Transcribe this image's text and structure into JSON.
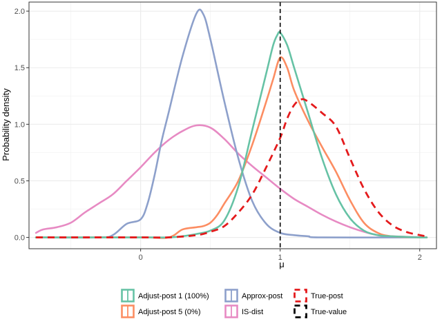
{
  "chart_data": {
    "type": "line",
    "title": "",
    "xlabel": "μ",
    "ylabel": "Probability density",
    "xlim": [
      -0.8,
      2.12
    ],
    "ylim": [
      -0.1,
      2.08
    ],
    "x_ticks": [
      0,
      1,
      2
    ],
    "x_tick_labels": [
      "0",
      "1",
      "2"
    ],
    "y_ticks": [
      0.0,
      0.5,
      1.0,
      1.5,
      2.0
    ],
    "y_tick_labels": [
      "0.0",
      "0.5",
      "1.0",
      "1.5",
      "2.0"
    ],
    "grid": true,
    "legend_position": "bottom",
    "series": [
      {
        "name": "Adjust-post 1 (100%)",
        "color": "#66c2a5",
        "dash": "solid",
        "points": [
          [
            -0.75,
            0.0
          ],
          [
            0.0,
            0.0
          ],
          [
            0.1,
            0.0
          ],
          [
            0.2,
            0.0
          ],
          [
            0.3,
            0.01
          ],
          [
            0.4,
            0.03
          ],
          [
            0.5,
            0.06
          ],
          [
            0.6,
            0.15
          ],
          [
            0.7,
            0.45
          ],
          [
            0.8,
            0.95
          ],
          [
            0.9,
            1.45
          ],
          [
            0.95,
            1.7
          ],
          [
            0.98,
            1.79
          ],
          [
            1.0,
            1.81
          ],
          [
            1.05,
            1.7
          ],
          [
            1.1,
            1.5
          ],
          [
            1.2,
            1.1
          ],
          [
            1.3,
            0.7
          ],
          [
            1.4,
            0.38
          ],
          [
            1.5,
            0.17
          ],
          [
            1.6,
            0.06
          ],
          [
            1.7,
            0.02
          ],
          [
            1.8,
            0.01
          ],
          [
            2.0,
            0.0
          ],
          [
            2.05,
            0.0
          ]
        ]
      },
      {
        "name": "Adjust-post 5 (0%)",
        "color": "#fc8d62",
        "dash": "solid",
        "points": [
          [
            -0.75,
            0.0
          ],
          [
            0.0,
            0.0
          ],
          [
            0.2,
            0.0
          ],
          [
            0.3,
            0.07
          ],
          [
            0.4,
            0.09
          ],
          [
            0.45,
            0.1
          ],
          [
            0.5,
            0.13
          ],
          [
            0.55,
            0.2
          ],
          [
            0.6,
            0.3
          ],
          [
            0.7,
            0.5
          ],
          [
            0.8,
            0.82
          ],
          [
            0.9,
            1.2
          ],
          [
            0.95,
            1.4
          ],
          [
            1.0,
            1.59
          ],
          [
            1.05,
            1.5
          ],
          [
            1.1,
            1.3
          ],
          [
            1.2,
            1.03
          ],
          [
            1.3,
            0.8
          ],
          [
            1.4,
            0.58
          ],
          [
            1.5,
            0.33
          ],
          [
            1.6,
            0.13
          ],
          [
            1.7,
            0.04
          ],
          [
            1.8,
            0.01
          ],
          [
            2.0,
            0.0
          ],
          [
            2.05,
            0.0
          ]
        ]
      },
      {
        "name": "Approx-post",
        "color": "#8da0cb",
        "dash": "solid",
        "points": [
          [
            -0.75,
            0.0
          ],
          [
            -0.3,
            0.0
          ],
          [
            -0.2,
            0.02
          ],
          [
            -0.1,
            0.12
          ],
          [
            0.0,
            0.16
          ],
          [
            0.05,
            0.3
          ],
          [
            0.1,
            0.55
          ],
          [
            0.15,
            0.85
          ],
          [
            0.2,
            1.1
          ],
          [
            0.3,
            1.6
          ],
          [
            0.4,
            1.98
          ],
          [
            0.45,
            1.97
          ],
          [
            0.5,
            1.75
          ],
          [
            0.6,
            1.2
          ],
          [
            0.7,
            0.7
          ],
          [
            0.8,
            0.32
          ],
          [
            0.9,
            0.12
          ],
          [
            1.0,
            0.04
          ],
          [
            1.1,
            0.02
          ],
          [
            1.2,
            0.01
          ],
          [
            1.3,
            0.0
          ],
          [
            2.05,
            0.0
          ]
        ]
      },
      {
        "name": "IS-dist",
        "color": "#e78ac3",
        "dash": "solid",
        "points": [
          [
            -0.75,
            0.04
          ],
          [
            -0.7,
            0.07
          ],
          [
            -0.6,
            0.09
          ],
          [
            -0.5,
            0.13
          ],
          [
            -0.4,
            0.22
          ],
          [
            -0.3,
            0.3
          ],
          [
            -0.2,
            0.38
          ],
          [
            -0.1,
            0.5
          ],
          [
            0.0,
            0.62
          ],
          [
            0.1,
            0.75
          ],
          [
            0.2,
            0.86
          ],
          [
            0.3,
            0.94
          ],
          [
            0.4,
            0.99
          ],
          [
            0.5,
            0.97
          ],
          [
            0.6,
            0.87
          ],
          [
            0.7,
            0.74
          ],
          [
            0.8,
            0.63
          ],
          [
            0.9,
            0.53
          ],
          [
            1.0,
            0.43
          ],
          [
            1.1,
            0.34
          ],
          [
            1.2,
            0.27
          ],
          [
            1.3,
            0.2
          ],
          [
            1.4,
            0.14
          ],
          [
            1.5,
            0.09
          ],
          [
            1.6,
            0.05
          ],
          [
            1.7,
            0.02
          ],
          [
            1.8,
            0.01
          ],
          [
            2.05,
            0.0
          ]
        ]
      },
      {
        "name": "True-post",
        "color": "#e41a1c",
        "dash": "dashed",
        "points": [
          [
            -0.75,
            0.0
          ],
          [
            -0.4,
            0.0
          ],
          [
            0.0,
            0.0
          ],
          [
            0.2,
            0.0
          ],
          [
            0.4,
            0.02
          ],
          [
            0.5,
            0.05
          ],
          [
            0.6,
            0.1
          ],
          [
            0.7,
            0.22
          ],
          [
            0.8,
            0.38
          ],
          [
            0.9,
            0.62
          ],
          [
            1.0,
            0.88
          ],
          [
            1.05,
            1.05
          ],
          [
            1.1,
            1.17
          ],
          [
            1.15,
            1.22
          ],
          [
            1.2,
            1.2
          ],
          [
            1.3,
            1.1
          ],
          [
            1.4,
            0.98
          ],
          [
            1.5,
            0.7
          ],
          [
            1.6,
            0.43
          ],
          [
            1.7,
            0.23
          ],
          [
            1.8,
            0.11
          ],
          [
            1.9,
            0.05
          ],
          [
            2.0,
            0.02
          ],
          [
            2.05,
            0.01
          ]
        ]
      }
    ],
    "reference_lines": [
      {
        "name": "True-value",
        "axis": "x",
        "value": 1,
        "color": "#000000",
        "dash": "dashed"
      }
    ]
  }
}
